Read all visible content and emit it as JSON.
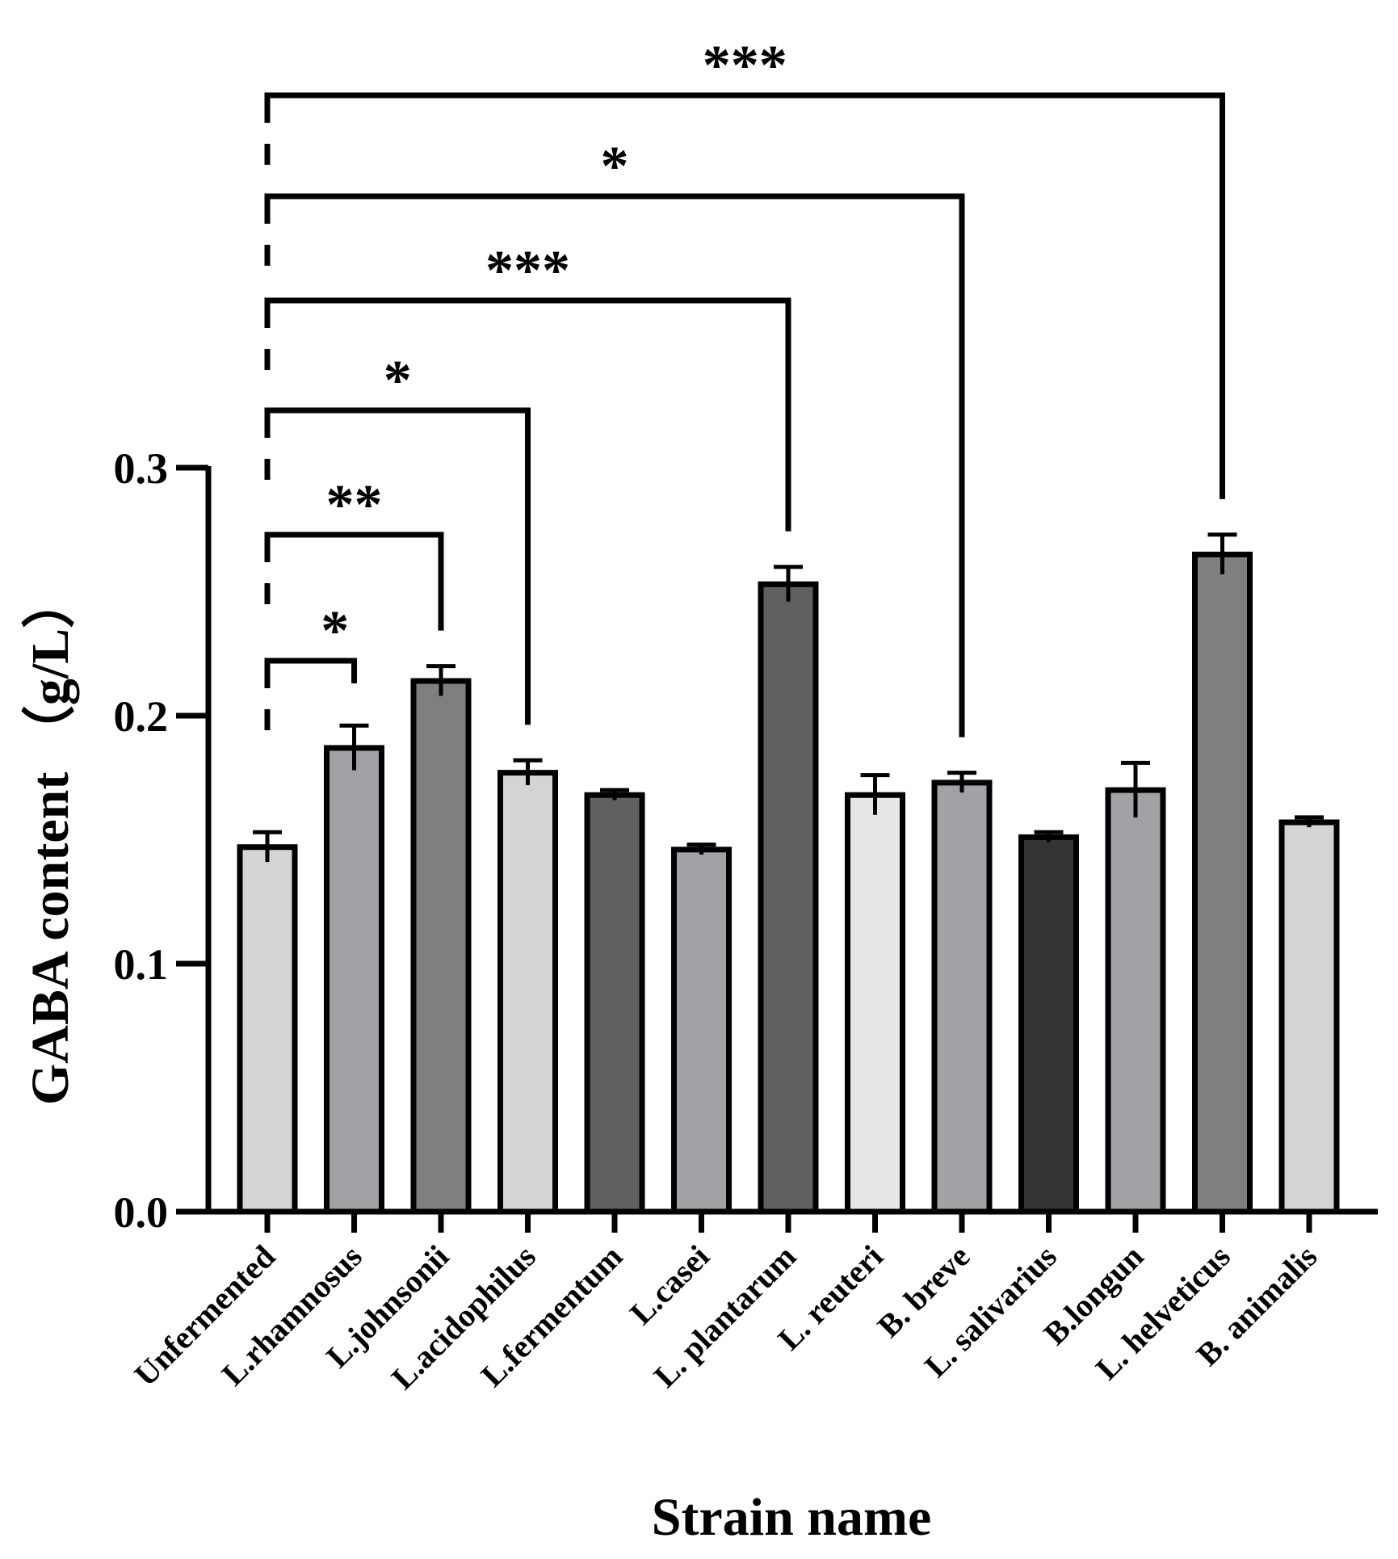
{
  "chart_data": {
    "type": "bar",
    "title": "",
    "xlabel": "Strain name",
    "ylabel": "GABA content （g/L）",
    "ylim": [
      0,
      0.3
    ],
    "yticks": [
      0.0,
      0.1,
      0.2,
      0.3
    ],
    "ytick_labels": [
      "0.0",
      "0.1",
      "0.2",
      "0.3"
    ],
    "categories": [
      "Unfermented",
      "L.rhamnosus",
      "L.johnsonii",
      "L.acidophilus",
      "L.fermentum",
      "L.casei",
      "L. plantarum",
      "L. reuteri",
      "B. breve",
      "L. salivarius",
      "B.longun",
      "L. helveticus",
      "B. animalis"
    ],
    "values": [
      0.147,
      0.187,
      0.214,
      0.177,
      0.168,
      0.146,
      0.253,
      0.168,
      0.173,
      0.151,
      0.17,
      0.265,
      0.157
    ],
    "errors": [
      0.006,
      0.009,
      0.006,
      0.005,
      0.002,
      0.002,
      0.007,
      0.008,
      0.004,
      0.002,
      0.011,
      0.008,
      0.002
    ],
    "bar_colors": [
      "#d4d4d4",
      "#a1a1a6",
      "#7f7f7f",
      "#d4d4d4",
      "#606060",
      "#a1a1a6",
      "#606060",
      "#e6e6e6",
      "#a1a1a6",
      "#333333",
      "#a1a1a6",
      "#7f7f7f",
      "#d4d4d4"
    ],
    "significance": [
      {
        "from": "Unfermented",
        "to": "L.rhamnosus",
        "label": "*"
      },
      {
        "from": "Unfermented",
        "to": "L.johnsonii",
        "label": "**"
      },
      {
        "from": "Unfermented",
        "to": "L.acidophilus",
        "label": "*"
      },
      {
        "from": "Unfermented",
        "to": "L. plantarum",
        "label": "***"
      },
      {
        "from": "Unfermented",
        "to": "B. breve",
        "label": "*"
      },
      {
        "from": "Unfermented",
        "to": "L. helveticus",
        "label": "***"
      }
    ]
  }
}
